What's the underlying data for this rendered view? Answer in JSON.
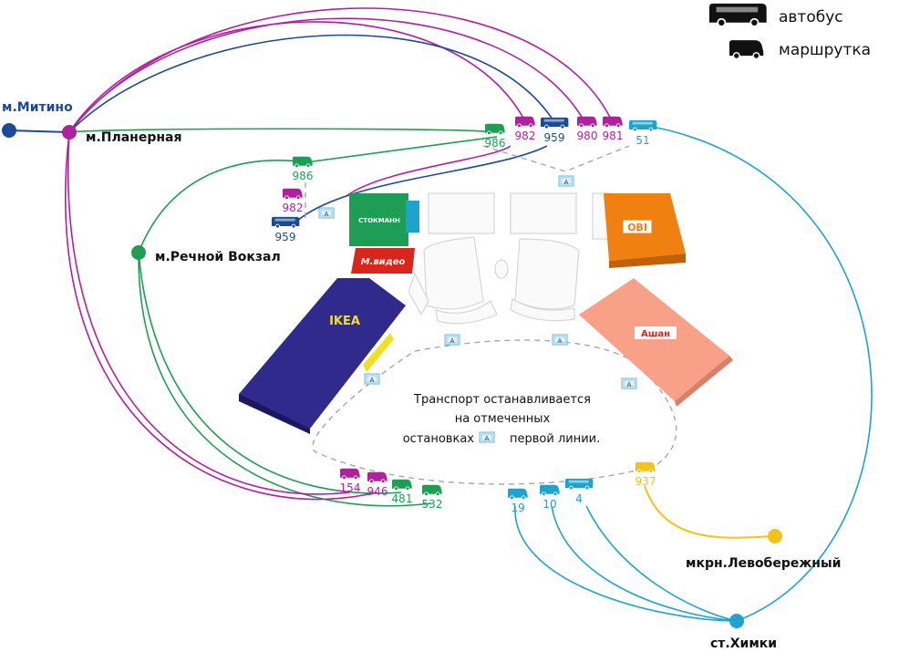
{
  "colors": {
    "purple": "#b0219e",
    "navy": "#1c4a95",
    "green": "#1e9e55",
    "cyan": "#1ea3cf",
    "yellow": "#f2c318",
    "black": "#111111",
    "stop_gray": "#9a9a9a"
  },
  "legend": {
    "bus": {
      "icon": "bus-icon",
      "label": "автобус"
    },
    "minibus": {
      "icon": "minibus-icon",
      "label": "маршрутка"
    }
  },
  "places": {
    "mitino": "м.Митино",
    "planernaya": "м.Планерная",
    "rechnoy": "м.Речной Вокзал",
    "levoberezhny": "мкрн.Левобережный",
    "khimki": "ст.Химки"
  },
  "stores": {
    "stockmann": "СТОКМАНН",
    "mvideo": "М.видео",
    "ikea": "IKEA",
    "obi": "OBI",
    "auchan": "Ашан"
  },
  "note": {
    "line1": "Транспорт останавливается",
    "line2": "на отмеченных",
    "line3a": "остановках",
    "line3b": "первой линии."
  },
  "stop_sign": "A",
  "routes": {
    "top": [
      {
        "number": "986",
        "color": "green",
        "kind": "minibus"
      },
      {
        "number": "982",
        "color": "purple",
        "kind": "minibus"
      },
      {
        "number": "959",
        "color": "navy",
        "kind": "bus"
      },
      {
        "number": "980",
        "color": "purple",
        "kind": "minibus"
      },
      {
        "number": "981",
        "color": "purple",
        "kind": "minibus"
      },
      {
        "number": "51",
        "color": "cyan",
        "kind": "bus"
      }
    ],
    "left": [
      {
        "number": "986",
        "color": "green",
        "kind": "minibus"
      },
      {
        "number": "982",
        "color": "purple",
        "kind": "minibus"
      },
      {
        "number": "959",
        "color": "navy",
        "kind": "bus"
      }
    ],
    "bottom_left": [
      {
        "number": "154",
        "color": "purple",
        "kind": "minibus"
      },
      {
        "number": "946",
        "color": "purple",
        "kind": "minibus"
      },
      {
        "number": "481",
        "color": "green",
        "kind": "minibus"
      },
      {
        "number": "532",
        "color": "green",
        "kind": "minibus"
      }
    ],
    "bottom_right": [
      {
        "number": "19",
        "color": "cyan",
        "kind": "minibus"
      },
      {
        "number": "10",
        "color": "cyan",
        "kind": "minibus"
      },
      {
        "number": "4",
        "color": "cyan",
        "kind": "bus"
      },
      {
        "number": "937",
        "color": "yellow",
        "kind": "minibus"
      }
    ]
  }
}
